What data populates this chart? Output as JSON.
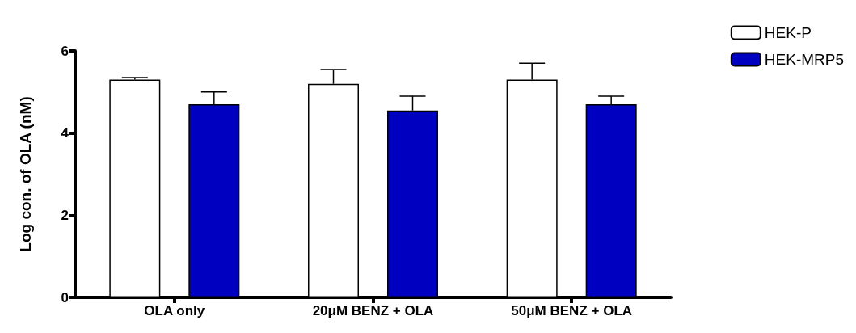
{
  "chart_data": {
    "type": "bar",
    "ylabel": "Log con. of OLA (nM)",
    "categories": [
      "OLA only",
      "20μM BENZ + OLA",
      "50μM BENZ + OLA"
    ],
    "series": [
      {
        "name": "HEK-P",
        "color": "#ffffff",
        "values": [
          5.3,
          5.2,
          5.3
        ],
        "errors": [
          [
            5.3,
            5.35
          ],
          [
            5.2,
            5.55
          ],
          [
            5.3,
            5.7
          ]
        ]
      },
      {
        "name": "HEK-MRP5",
        "color": "#0000c0",
        "values": [
          4.7,
          4.55,
          4.7
        ],
        "errors": [
          [
            4.7,
            5.0
          ],
          [
            4.55,
            4.9
          ],
          [
            4.7,
            4.9
          ]
        ]
      }
    ],
    "ylim": [
      0,
      6
    ],
    "yticks": [
      0,
      2,
      4,
      6
    ],
    "grid": false,
    "legend": "top right"
  }
}
